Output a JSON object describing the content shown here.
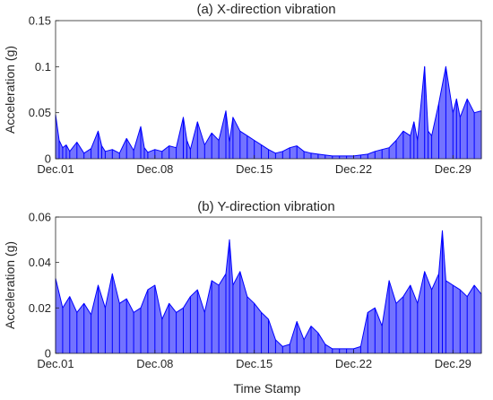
{
  "figure": {
    "xlabel": "Time Stamp"
  },
  "chart_data": [
    {
      "type": "line",
      "title": "(a) X-direction vibration",
      "xlabel": "",
      "ylabel": "Acceleration (g)",
      "xlim": [
        "2015-12-01",
        "2015-12-31"
      ],
      "ylim": [
        0,
        0.15
      ],
      "x_ticks": [
        {
          "date": "2015-12-01",
          "label": "Dec.01"
        },
        {
          "date": "2015-12-08",
          "label": "Dec.08"
        },
        {
          "date": "2015-12-15",
          "label": "Dec.15"
        },
        {
          "date": "2015-12-22",
          "label": "Dec.22"
        },
        {
          "date": "2015-12-29",
          "label": "Dec.29"
        }
      ],
      "y_ticks": [
        {
          "value": 0,
          "label": "0"
        },
        {
          "value": 0.05,
          "label": "0.05"
        },
        {
          "value": 0.1,
          "label": "0.1"
        },
        {
          "value": 0.15,
          "label": "0.15"
        }
      ],
      "color": "#0000ff",
      "series": [
        {
          "x": [
            "2015-12-01",
            "2015-12-01T06",
            "2015-12-01T12",
            "2015-12-01T18",
            "2015-12-02",
            "2015-12-02T12",
            "2015-12-03",
            "2015-12-03T12",
            "2015-12-04",
            "2015-12-04T06",
            "2015-12-04T12",
            "2015-12-05",
            "2015-12-05T12",
            "2015-12-06",
            "2015-12-06T12",
            "2015-12-07",
            "2015-12-07T06",
            "2015-12-07T12",
            "2015-12-08",
            "2015-12-08T12",
            "2015-12-09",
            "2015-12-09T12",
            "2015-12-10",
            "2015-12-10T06",
            "2015-12-10T12",
            "2015-12-11",
            "2015-12-11T12",
            "2015-12-12",
            "2015-12-12T12",
            "2015-12-13",
            "2015-12-13T06",
            "2015-12-13T12",
            "2015-12-14",
            "2015-12-14T12",
            "2015-12-15",
            "2015-12-15T12",
            "2015-12-16",
            "2015-12-16T12",
            "2015-12-17",
            "2015-12-17T12",
            "2015-12-18",
            "2015-12-18T12",
            "2015-12-19",
            "2015-12-19T12",
            "2015-12-20",
            "2015-12-20T12",
            "2015-12-21",
            "2015-12-21T12",
            "2015-12-22",
            "2015-12-22T12",
            "2015-12-23",
            "2015-12-23T12",
            "2015-12-24",
            "2015-12-24T12",
            "2015-12-25",
            "2015-12-25T12",
            "2015-12-26",
            "2015-12-26T06",
            "2015-12-26T12",
            "2015-12-27",
            "2015-12-27T06",
            "2015-12-27T12",
            "2015-12-28",
            "2015-12-28T12",
            "2015-12-29",
            "2015-12-29T06",
            "2015-12-29T12",
            "2015-12-30",
            "2015-12-30T12",
            "2015-12-31"
          ],
          "y": [
            0.048,
            0.02,
            0.012,
            0.015,
            0.008,
            0.018,
            0.006,
            0.011,
            0.03,
            0.014,
            0.008,
            0.01,
            0.006,
            0.022,
            0.009,
            0.035,
            0.012,
            0.007,
            0.01,
            0.008,
            0.014,
            0.012,
            0.045,
            0.02,
            0.01,
            0.04,
            0.015,
            0.028,
            0.02,
            0.052,
            0.018,
            0.045,
            0.03,
            0.025,
            0.02,
            0.015,
            0.01,
            0.006,
            0.008,
            0.012,
            0.014,
            0.008,
            0.006,
            0.005,
            0.004,
            0.003,
            0.003,
            0.003,
            0.003,
            0.004,
            0.005,
            0.008,
            0.01,
            0.012,
            0.02,
            0.03,
            0.025,
            0.04,
            0.02,
            0.1,
            0.03,
            0.025,
            0.06,
            0.1,
            0.05,
            0.065,
            0.045,
            0.065,
            0.05,
            0.052
          ]
        }
      ]
    },
    {
      "type": "line",
      "title": "(b) Y-direction vibration",
      "xlabel": "Time Stamp",
      "ylabel": "Acceleration (g)",
      "xlim": [
        "2015-12-01",
        "2015-12-31"
      ],
      "ylim": [
        0,
        0.06
      ],
      "x_ticks": [
        {
          "date": "2015-12-01",
          "label": "Dec.01"
        },
        {
          "date": "2015-12-08",
          "label": "Dec.08"
        },
        {
          "date": "2015-12-15",
          "label": "Dec.15"
        },
        {
          "date": "2015-12-22",
          "label": "Dec.22"
        },
        {
          "date": "2015-12-29",
          "label": "Dec.29"
        }
      ],
      "y_ticks": [
        {
          "value": 0,
          "label": "0"
        },
        {
          "value": 0.02,
          "label": "0.02"
        },
        {
          "value": 0.04,
          "label": "0.04"
        },
        {
          "value": 0.06,
          "label": "0.06"
        }
      ],
      "color": "#0000ff",
      "series": [
        {
          "x": [
            "2015-12-01",
            "2015-12-01T12",
            "2015-12-02",
            "2015-12-02T12",
            "2015-12-03",
            "2015-12-03T12",
            "2015-12-04",
            "2015-12-04T12",
            "2015-12-05",
            "2015-12-05T12",
            "2015-12-06",
            "2015-12-06T12",
            "2015-12-07",
            "2015-12-07T12",
            "2015-12-08",
            "2015-12-08T12",
            "2015-12-09",
            "2015-12-09T12",
            "2015-12-10",
            "2015-12-10T12",
            "2015-12-11",
            "2015-12-11T12",
            "2015-12-12",
            "2015-12-12T12",
            "2015-12-13",
            "2015-12-13T06",
            "2015-12-13T12",
            "2015-12-14",
            "2015-12-14T12",
            "2015-12-15",
            "2015-12-15T12",
            "2015-12-16",
            "2015-12-16T12",
            "2015-12-17",
            "2015-12-17T12",
            "2015-12-18",
            "2015-12-18T12",
            "2015-12-19",
            "2015-12-19T12",
            "2015-12-20",
            "2015-12-20T12",
            "2015-12-21",
            "2015-12-21T12",
            "2015-12-22",
            "2015-12-22T12",
            "2015-12-23",
            "2015-12-23T12",
            "2015-12-24",
            "2015-12-24T12",
            "2015-12-25",
            "2015-12-25T12",
            "2015-12-26",
            "2015-12-26T12",
            "2015-12-27",
            "2015-12-27T12",
            "2015-12-28",
            "2015-12-28T06",
            "2015-12-28T12",
            "2015-12-29",
            "2015-12-29T12",
            "2015-12-30",
            "2015-12-30T12",
            "2015-12-31"
          ],
          "y": [
            0.033,
            0.02,
            0.025,
            0.018,
            0.022,
            0.017,
            0.03,
            0.02,
            0.035,
            0.022,
            0.024,
            0.018,
            0.02,
            0.028,
            0.03,
            0.015,
            0.022,
            0.018,
            0.02,
            0.025,
            0.028,
            0.018,
            0.032,
            0.03,
            0.035,
            0.05,
            0.03,
            0.036,
            0.025,
            0.022,
            0.018,
            0.015,
            0.006,
            0.003,
            0.004,
            0.014,
            0.006,
            0.012,
            0.009,
            0.004,
            0.002,
            0.002,
            0.002,
            0.002,
            0.003,
            0.018,
            0.02,
            0.012,
            0.032,
            0.022,
            0.025,
            0.03,
            0.022,
            0.036,
            0.028,
            0.035,
            0.054,
            0.032,
            0.03,
            0.028,
            0.025,
            0.03,
            0.026
          ]
        }
      ]
    }
  ]
}
